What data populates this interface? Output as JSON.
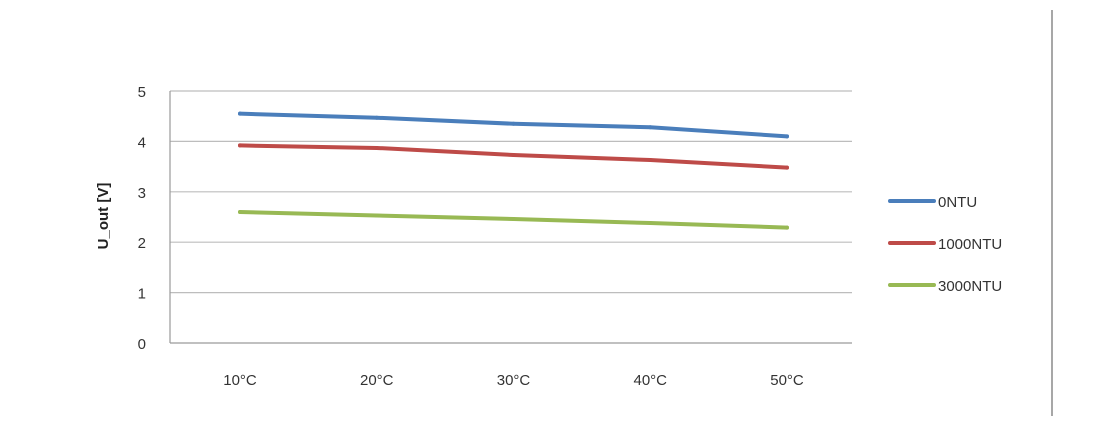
{
  "chart_data": {
    "type": "line",
    "title": "",
    "xlabel": "",
    "ylabel": "U_out [V]",
    "categories": [
      "10°C",
      "20°C",
      "30°C",
      "40°C",
      "50°C"
    ],
    "ylim": [
      0,
      5
    ],
    "yticks": [
      "0",
      "1",
      "2",
      "3",
      "4",
      "5"
    ],
    "grid": true,
    "legend_position": "right",
    "series": [
      {
        "name": "0NTU",
        "color": "#4a7ebb",
        "values": [
          4.55,
          4.47,
          4.35,
          4.28,
          4.1
        ]
      },
      {
        "name": "1000NTU",
        "color": "#be4b48",
        "values": [
          3.92,
          3.87,
          3.73,
          3.63,
          3.48
        ]
      },
      {
        "name": "3000NTU",
        "color": "#98b954",
        "values": [
          2.6,
          2.53,
          2.46,
          2.38,
          2.29
        ]
      }
    ]
  }
}
